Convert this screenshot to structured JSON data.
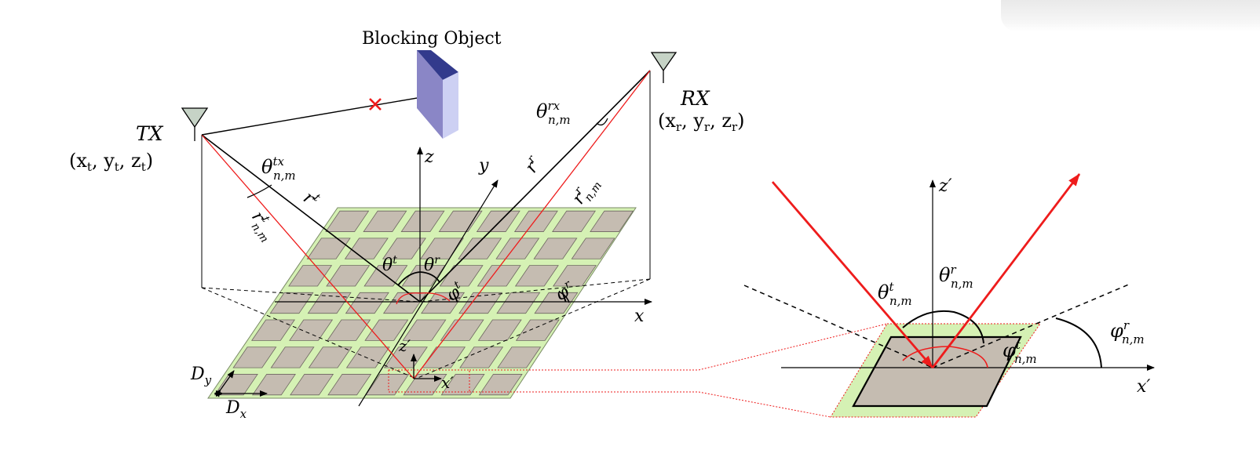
{
  "blocking_object": {
    "label": "Blocking Object"
  },
  "tx": {
    "name": "TX",
    "coords": "(x",
    "c1": "t",
    "c2": ", y",
    "c3": "t",
    "c4": ", z",
    "c5": "t",
    "c6": ")"
  },
  "rx": {
    "name": "RX",
    "coords": "(x",
    "c1": "r",
    "c2": ", y",
    "c3": "r",
    "c4": ", z",
    "c5": "r",
    "c6": ")"
  },
  "left": {
    "theta_tx": {
      "base": "θ",
      "sup": "tx",
      "sub": "n,m"
    },
    "theta_rx": {
      "base": "θ",
      "sup": "rx",
      "sub": "n,m"
    },
    "r_t": {
      "base": "r",
      "sup": "t"
    },
    "r_r": {
      "base": "r",
      "sup": "r"
    },
    "r_t_nm": {
      "base": "r",
      "sup": "t",
      "sub": "n,m"
    },
    "r_r_nm": {
      "base": "r",
      "sup": "r",
      "sub": "n,m"
    },
    "theta_t": {
      "base": "θ",
      "sup": "t"
    },
    "theta_r": {
      "base": "θ",
      "sup": "r"
    },
    "phi_t": {
      "base": "φ",
      "sup": "t"
    },
    "phi_r": {
      "base": "φ",
      "sup": "r"
    },
    "axis_x": "x",
    "axis_y": "y",
    "axis_z": "z",
    "axis_xp": "x′",
    "axis_zp": "z′",
    "dx": {
      "base": "D",
      "sub": "x"
    },
    "dy": {
      "base": "D",
      "sub": "y"
    }
  },
  "right": {
    "axis_zp": "z′",
    "axis_xp": "x′",
    "theta_t_nm": {
      "base": "θ",
      "sup": "t",
      "sub": "n,m"
    },
    "theta_r_nm": {
      "base": "θ",
      "sup": "r",
      "sub": "n,m"
    },
    "phi_t_nm": {
      "base": "φ",
      "sup": "t",
      "sub": "n,m"
    },
    "phi_r_nm": {
      "base": "φ",
      "sup": "r",
      "sub": "n,m"
    }
  },
  "colors": {
    "surface": "#d5f1b4",
    "element": "#c5bcb1",
    "ray": "#ee1c1c",
    "block_front": "#8a86c6",
    "block_top": "#323a8c",
    "block_side": "#cdd0f3"
  }
}
